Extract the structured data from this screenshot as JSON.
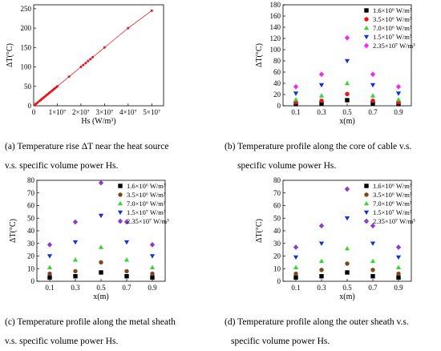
{
  "colors": {
    "black": "#000000",
    "red": "#e8141b",
    "green": "#38d434",
    "blue": "#1530d4",
    "magenta": "#f028ec",
    "brown": "#7a4a1a",
    "purple": "#8a3cc6",
    "line": "#e83a3a"
  },
  "chart_data": [
    {
      "type": "line",
      "caption_line1": "(a) Temperature rise ΔT near the heat source",
      "caption_line2": "v.s. specific volume power Hs.",
      "ylabel": "ΔT(°C)",
      "xlabel": "Hs (W/m³)",
      "xlim": [
        0,
        55000000
      ],
      "ylim": [
        0,
        260
      ],
      "x_ticks": [
        {
          "v": 0,
          "label": "0"
        },
        {
          "v": 10000000,
          "label": "1×10⁷"
        },
        {
          "v": 20000000,
          "label": "2×10⁷"
        },
        {
          "v": 30000000,
          "label": "3×10⁷"
        },
        {
          "v": 40000000,
          "label": "4×10⁷"
        },
        {
          "v": 50000000,
          "label": "5×10⁷"
        }
      ],
      "y_ticks": [
        {
          "v": 0,
          "label": "0"
        },
        {
          "v": 50,
          "label": "50"
        },
        {
          "v": 100,
          "label": "100"
        },
        {
          "v": 150,
          "label": "150"
        },
        {
          "v": 200,
          "label": "200"
        },
        {
          "v": 250,
          "label": "250"
        }
      ],
      "series": [
        {
          "x": [
            300000,
            800000,
            1300000,
            1800000,
            2500000,
            3000000,
            3500000,
            4000000,
            4500000,
            5000000,
            5500000,
            6000000,
            6500000,
            7000000,
            7500000,
            8000000,
            8500000,
            9000000,
            9500000,
            10000000,
            15000000,
            20000000,
            21000000,
            22000000,
            23000000,
            24000000,
            25000000,
            30000000,
            40000000,
            50000000
          ],
          "y": [
            1.5,
            4,
            6.5,
            9,
            12.5,
            15,
            17.5,
            20,
            22.5,
            25,
            27.5,
            30,
            32.5,
            35,
            37.5,
            40,
            42.5,
            45,
            47.5,
            50,
            75,
            100,
            105,
            110,
            115,
            120,
            125,
            150,
            200,
            245
          ]
        }
      ]
    },
    {
      "type": "scatter",
      "caption_line1": "(b) Temperature profile along the core of cable v.s.",
      "caption_line2": "specific volume power Hs.",
      "ylabel": "ΔT(°C)",
      "xlabel": "x(m)",
      "xlim": [
        0,
        1.0
      ],
      "ylim": [
        0,
        180
      ],
      "x_ticks": [
        {
          "v": 0.1,
          "label": "0.1"
        },
        {
          "v": 0.3,
          "label": "0.3"
        },
        {
          "v": 0.5,
          "label": "0.5"
        },
        {
          "v": 0.7,
          "label": "0.7"
        },
        {
          "v": 0.9,
          "label": "0.9"
        }
      ],
      "y_ticks": [
        {
          "v": 0,
          "label": "0"
        },
        {
          "v": 20,
          "label": "20"
        },
        {
          "v": 40,
          "label": "40"
        },
        {
          "v": 60,
          "label": "60"
        },
        {
          "v": 80,
          "label": "80"
        },
        {
          "v": 100,
          "label": "100"
        },
        {
          "v": 120,
          "label": "120"
        },
        {
          "v": 140,
          "label": "140"
        },
        {
          "v": 160,
          "label": "160"
        },
        {
          "v": 180,
          "label": "180"
        }
      ],
      "x": [
        0.1,
        0.3,
        0.5,
        0.7,
        0.9
      ],
      "series": [
        {
          "name": "1.6×10⁶ W/m³",
          "marker": "square",
          "color": "#000000",
          "values": [
            3,
            4,
            10,
            4,
            3
          ]
        },
        {
          "name": "3.5×10⁶ W/m³",
          "marker": "circle",
          "color": "#e8141b",
          "values": [
            6,
            9,
            21,
            9,
            6
          ]
        },
        {
          "name": "7.0×10⁶ W/m³",
          "marker": "triangle-up",
          "color": "#38d434",
          "values": [
            11,
            18,
            40,
            18,
            11
          ]
        },
        {
          "name": "1.5×10⁷ W/m³",
          "marker": "triangle-down",
          "color": "#1530d4",
          "values": [
            22,
            37,
            80,
            37,
            22
          ]
        },
        {
          "name": "2.35×10⁷ W/m³",
          "marker": "diamond",
          "color": "#f028ec",
          "values": [
            34,
            56,
            121,
            56,
            34
          ]
        }
      ]
    },
    {
      "type": "scatter",
      "caption_line1": "(c) Temperature profile along the metal sheath",
      "caption_line2": "v.s. specific volume power Hs.",
      "ylabel": "ΔT(°C)",
      "xlabel": "x(m)",
      "xlim": [
        0,
        1.0
      ],
      "ylim": [
        0,
        80
      ],
      "x_ticks": [
        {
          "v": 0.1,
          "label": "0.1"
        },
        {
          "v": 0.3,
          "label": "0.3"
        },
        {
          "v": 0.5,
          "label": "0.5"
        },
        {
          "v": 0.7,
          "label": "0.7"
        },
        {
          "v": 0.9,
          "label": "0.9"
        }
      ],
      "y_ticks": [
        {
          "v": 0,
          "label": "0"
        },
        {
          "v": 10,
          "label": "10"
        },
        {
          "v": 20,
          "label": "20"
        },
        {
          "v": 30,
          "label": "30"
        },
        {
          "v": 40,
          "label": "40"
        },
        {
          "v": 50,
          "label": "50"
        },
        {
          "v": 60,
          "label": "60"
        },
        {
          "v": 70,
          "label": "70"
        },
        {
          "v": 80,
          "label": "80"
        }
      ],
      "x": [
        0.1,
        0.3,
        0.5,
        0.7,
        0.9
      ],
      "series": [
        {
          "name": "1.6×10⁶ W/m³",
          "marker": "square",
          "color": "#000000",
          "values": [
            3,
            4,
            7,
            4,
            3
          ]
        },
        {
          "name": "3.5×10⁶ W/m³",
          "marker": "circle",
          "color": "#7a4a1a",
          "values": [
            6,
            8,
            15,
            8,
            6
          ]
        },
        {
          "name": "7.0×10⁶ W/m³",
          "marker": "triangle-up",
          "color": "#38d434",
          "values": [
            11,
            17,
            27,
            17,
            11
          ]
        },
        {
          "name": "1.5×10⁷ W/m³",
          "marker": "triangle-down",
          "color": "#1530d4",
          "values": [
            20,
            31,
            52,
            31,
            20
          ]
        },
        {
          "name": "2.35×10⁷ W/m³",
          "marker": "diamond",
          "color": "#8a3cc6",
          "values": [
            29,
            47,
            78,
            47,
            29
          ]
        }
      ]
    },
    {
      "type": "scatter",
      "caption_line1": "(d) Temperature profile along the outer sheath v.s.",
      "caption_line2": "specific volume power Hs.",
      "ylabel": "ΔT(°C)",
      "xlabel": "x(m)",
      "xlim": [
        0,
        1.0
      ],
      "ylim": [
        0,
        80
      ],
      "x_ticks": [
        {
          "v": 0.1,
          "label": "0.1"
        },
        {
          "v": 0.3,
          "label": "0.3"
        },
        {
          "v": 0.5,
          "label": "0.5"
        },
        {
          "v": 0.7,
          "label": "0.7"
        },
        {
          "v": 0.9,
          "label": "0.9"
        }
      ],
      "y_ticks": [
        {
          "v": 0,
          "label": "0"
        },
        {
          "v": 10,
          "label": "10"
        },
        {
          "v": 20,
          "label": "20"
        },
        {
          "v": 30,
          "label": "30"
        },
        {
          "v": 40,
          "label": "40"
        },
        {
          "v": 50,
          "label": "50"
        },
        {
          "v": 60,
          "label": "60"
        },
        {
          "v": 70,
          "label": "70"
        },
        {
          "v": 80,
          "label": "80"
        }
      ],
      "x": [
        0.1,
        0.3,
        0.5,
        0.7,
        0.9
      ],
      "series": [
        {
          "name": "1.6×10⁶ W/m³",
          "marker": "square",
          "color": "#000000",
          "values": [
            3,
            4,
            7,
            4,
            3
          ]
        },
        {
          "name": "3.5×10⁶ W/m³",
          "marker": "circle",
          "color": "#7a4a1a",
          "values": [
            6,
            9,
            14,
            9,
            6
          ]
        },
        {
          "name": "7.0×10⁶ W/m³",
          "marker": "triangle-up",
          "color": "#38d434",
          "values": [
            11,
            16,
            26,
            16,
            11
          ]
        },
        {
          "name": "1.5×10⁷ W/m³",
          "marker": "triangle-down",
          "color": "#1530d4",
          "values": [
            19,
            30,
            50,
            30,
            19
          ]
        },
        {
          "name": "2.35×10⁷ W/m³",
          "marker": "diamond",
          "color": "#8a3cc6",
          "values": [
            27,
            44,
            73,
            44,
            27
          ]
        }
      ]
    }
  ]
}
